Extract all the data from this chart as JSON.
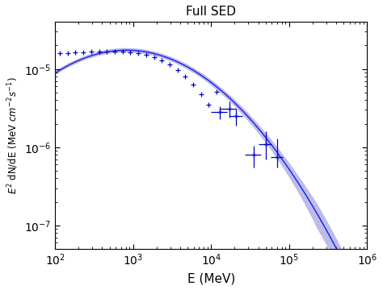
{
  "title": "Full SED",
  "xlabel": "E (MeV)",
  "ylabel": "$E^2$ dN/dE (MeV $cm^{-2}s^{-1}$)",
  "xlim": [
    100,
    1000000
  ],
  "ylim": [
    5e-08,
    4e-05
  ],
  "model_color": "#1a1aee",
  "band_color": "#9999dd",
  "data_color": "#0000cc",
  "background_color": "#ffffff",
  "model_params": {
    "E_peak": 500,
    "SED_peak": 1.68e-05,
    "alpha": 1.6,
    "Ec": 3500
  },
  "data_no_err": [
    [
      115,
      1.58e-05
    ],
    [
      145,
      1.6e-05
    ],
    [
      180,
      1.62e-05
    ],
    [
      230,
      1.64e-05
    ],
    [
      290,
      1.66e-05
    ],
    [
      365,
      1.67e-05
    ],
    [
      460,
      1.685e-05
    ],
    [
      580,
      1.68e-05
    ],
    [
      730,
      1.67e-05
    ],
    [
      920,
      1.64e-05
    ],
    [
      1160,
      1.59e-05
    ],
    [
      1460,
      1.52e-05
    ],
    [
      1850,
      1.42e-05
    ],
    [
      2320,
      1.3e-05
    ],
    [
      2930,
      1.15e-05
    ],
    [
      3690,
      9.8e-06
    ],
    [
      4640,
      8e-06
    ],
    [
      5850,
      6.3e-06
    ],
    [
      7360,
      4.8e-06
    ],
    [
      9270,
      3.5e-06
    ],
    [
      11700,
      5.1e-06
    ]
  ],
  "data_with_err": [
    [
      13000,
      2.8e-06,
      3000,
      3000,
      5e-07,
      5e-07
    ],
    [
      17000,
      3.1e-06,
      4000,
      4000,
      7e-07,
      7e-07
    ],
    [
      21000,
      2.5e-06,
      4000,
      4000,
      6e-07,
      6e-07
    ],
    [
      35000,
      8e-07,
      8000,
      8000,
      2.5e-07,
      2.5e-07
    ],
    [
      50000,
      1.1e-06,
      10000,
      10000,
      4e-07,
      5e-07
    ],
    [
      70000,
      7.5e-07,
      12000,
      12000,
      2e-07,
      5.5e-07
    ]
  ]
}
